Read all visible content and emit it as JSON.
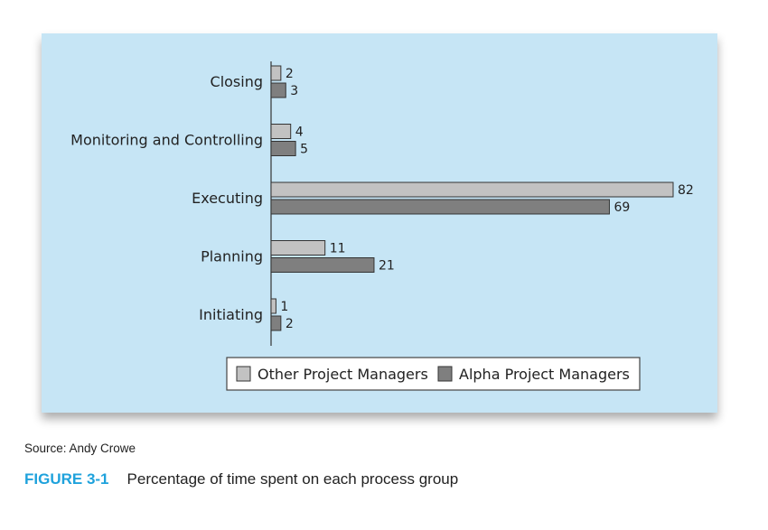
{
  "chart_data": {
    "type": "bar",
    "orientation": "horizontal",
    "categories": [
      "Closing",
      "Monitoring and Controlling",
      "Executing",
      "Planning",
      "Initiating"
    ],
    "series": [
      {
        "name": "Other Project Managers",
        "values": [
          2,
          4,
          82,
          11,
          1
        ],
        "color": "#c2c2c2"
      },
      {
        "name": "Alpha Project Managers",
        "values": [
          3,
          5,
          69,
          21,
          2
        ],
        "color": "#7f7f7f"
      }
    ],
    "xlim": [
      0,
      82
    ],
    "grid": false,
    "legend_position": "bottom-center",
    "background": "#c6e5f5"
  },
  "source_note": "Source: Andy Crowe",
  "caption": {
    "number": "FIGURE 3-1",
    "text": "Percentage of time spent on each process group"
  }
}
